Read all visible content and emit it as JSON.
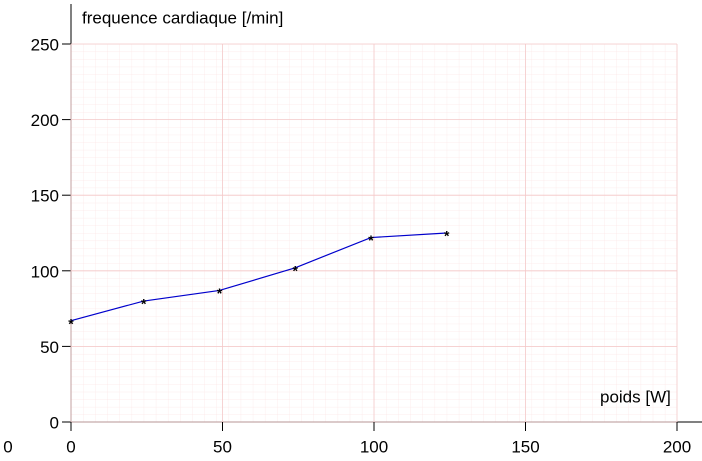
{
  "chart_data": {
    "type": "line",
    "y_label": "frequence cardiaque [/min]",
    "x_label": "poids [W]",
    "corner_label": "0",
    "x": [
      0,
      24,
      49,
      74,
      99,
      124
    ],
    "series": [
      {
        "color": "#0000cc",
        "marker": "*",
        "marker_color": "#000000",
        "values": [
          67,
          80,
          87,
          102,
          122,
          125
        ]
      }
    ],
    "xlim": [
      0,
      200
    ],
    "xticks": [
      0,
      50,
      100,
      150,
      200
    ],
    "ylim": [
      0,
      250
    ],
    "yticks": [
      0,
      50,
      100,
      150,
      200,
      250
    ],
    "grid": true
  }
}
